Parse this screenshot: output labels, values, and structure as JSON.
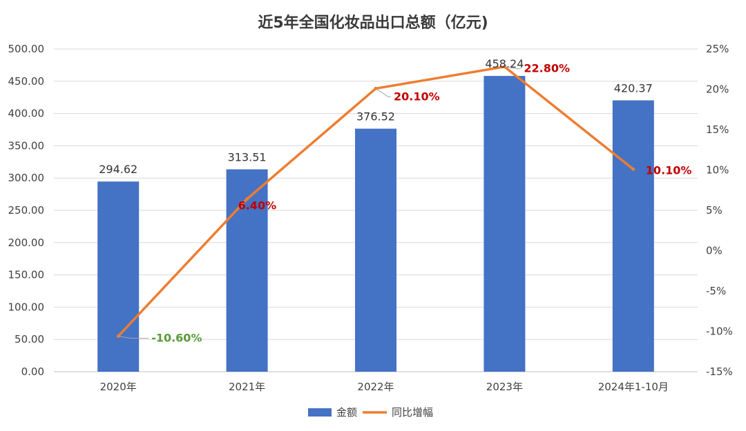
{
  "chart_data": {
    "type": "bar",
    "title": "近5年全国化妆品出口总额（亿元)",
    "categories": [
      "2020年",
      "2021年",
      "2022年",
      "2023年",
      "2024年1-10月"
    ],
    "series": [
      {
        "name": "金额",
        "type": "bar",
        "axis": "left",
        "color": "#4472C4",
        "values": [
          294.62,
          313.51,
          376.52,
          458.24,
          420.37
        ],
        "labels": [
          "294.62",
          "313.51",
          "376.52",
          "458.24",
          "420.37"
        ]
      },
      {
        "name": "同比增幅",
        "type": "line",
        "axis": "right",
        "color": "#ED7D31",
        "values": [
          -10.6,
          6.4,
          20.1,
          22.8,
          10.1
        ],
        "labels": [
          "-10.60%",
          "6.40%",
          "20.10%",
          "22.80%",
          "10.10%"
        ],
        "label_colors": [
          "#5B9B3A",
          "#C00000",
          "#C00000",
          "#C00000",
          "#C00000"
        ]
      }
    ],
    "y_left": {
      "ylim": [
        0,
        500
      ],
      "ticks": [
        0,
        50,
        100,
        150,
        200,
        250,
        300,
        350,
        400,
        450,
        500
      ],
      "tick_labels": [
        "0.00",
        "50.00",
        "100.00",
        "150.00",
        "200.00",
        "250.00",
        "300.00",
        "350.00",
        "400.00",
        "450.00",
        "500.00"
      ]
    },
    "y_right": {
      "ylim": [
        -15,
        25
      ],
      "ticks": [
        -15,
        -10,
        -5,
        0,
        5,
        10,
        15,
        20,
        25
      ],
      "tick_labels": [
        "-15%",
        "-10%",
        "-5%",
        "0%",
        "5%",
        "10%",
        "15%",
        "20%",
        "25%"
      ]
    },
    "grid": true,
    "legend": "bottom"
  }
}
